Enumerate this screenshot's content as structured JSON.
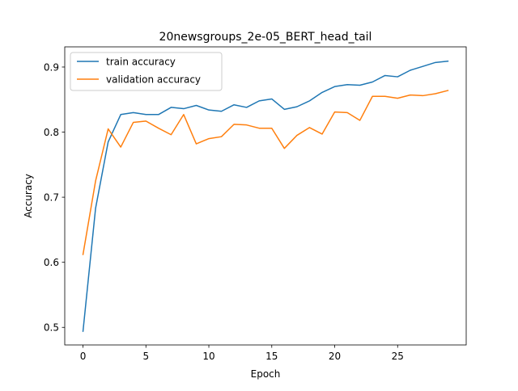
{
  "chart_data": {
    "type": "line",
    "title": "20newsgroups_2e-05_BERT_head_tail",
    "xlabel": "Epoch",
    "ylabel": "Accuracy",
    "xlim": [
      -1.45,
      30.45
    ],
    "ylim": [
      0.473,
      0.931
    ],
    "xticks": [
      0,
      5,
      10,
      15,
      20,
      25
    ],
    "yticks": [
      0.5,
      0.6,
      0.7,
      0.8,
      0.9
    ],
    "grid": false,
    "legend": {
      "position": "top-left",
      "entries": [
        "train accuracy",
        "validation accuracy"
      ]
    },
    "x": [
      0,
      1,
      2,
      3,
      4,
      5,
      6,
      7,
      8,
      9,
      10,
      11,
      12,
      13,
      14,
      15,
      16,
      17,
      18,
      19,
      20,
      21,
      22,
      23,
      24,
      25,
      26,
      27,
      28,
      29
    ],
    "series": [
      {
        "name": "train accuracy",
        "color": "#1f77b4",
        "values": [
          0.494,
          0.683,
          0.785,
          0.827,
          0.83,
          0.827,
          0.827,
          0.838,
          0.836,
          0.841,
          0.834,
          0.832,
          0.842,
          0.838,
          0.848,
          0.851,
          0.835,
          0.839,
          0.848,
          0.861,
          0.87,
          0.873,
          0.872,
          0.877,
          0.887,
          0.885,
          0.895,
          0.901,
          0.907,
          0.909
        ]
      },
      {
        "name": "validation accuracy",
        "color": "#ff7f0e",
        "values": [
          0.612,
          0.725,
          0.805,
          0.777,
          0.815,
          0.817,
          0.806,
          0.796,
          0.827,
          0.782,
          0.79,
          0.793,
          0.812,
          0.811,
          0.806,
          0.806,
          0.775,
          0.795,
          0.807,
          0.797,
          0.831,
          0.83,
          0.818,
          0.855,
          0.855,
          0.852,
          0.857,
          0.856,
          0.859,
          0.864
        ]
      }
    ]
  }
}
